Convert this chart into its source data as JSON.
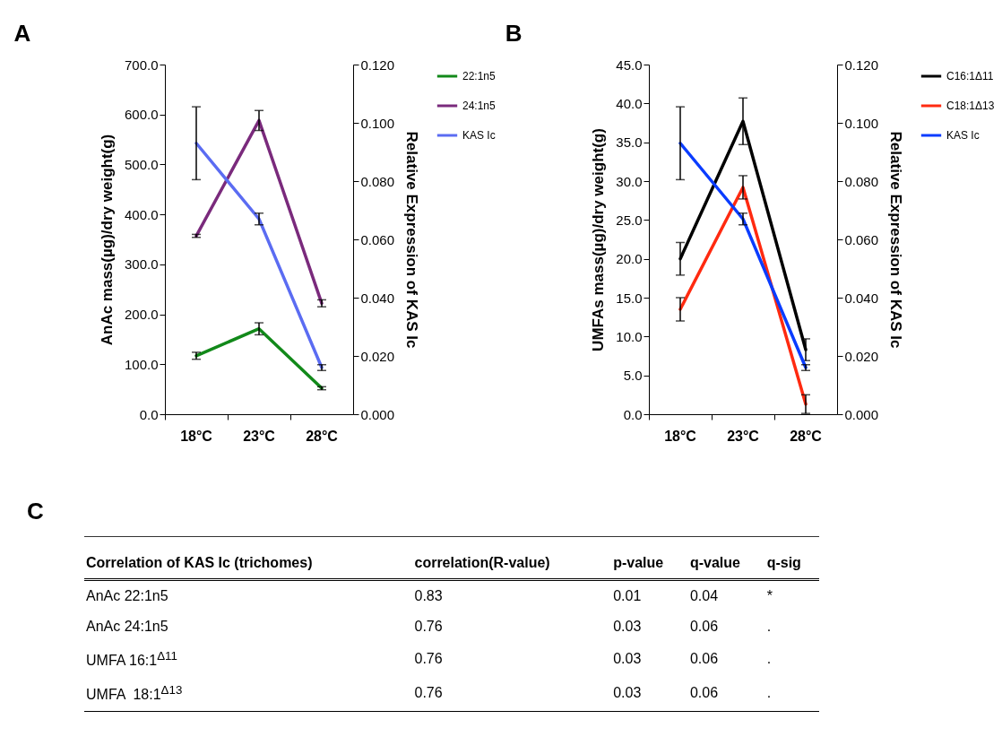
{
  "chart_data": [
    {
      "type": "line",
      "title": "A",
      "categories": [
        "18°C",
        "23°C",
        "28°C"
      ],
      "ylabel": "AnAc mass(µg)/dry weight(g)",
      "y2label": "Relative Expression of  KAS Ic",
      "ylim": [
        0,
        700
      ],
      "yticks": [
        {
          "value": 0,
          "label": "0.0"
        },
        {
          "value": 100,
          "label": "100.0"
        },
        {
          "value": 200,
          "label": "200.0"
        },
        {
          "value": 300,
          "label": "300.0"
        },
        {
          "value": 400,
          "label": "400.0"
        },
        {
          "value": 500,
          "label": "500.0"
        },
        {
          "value": 600,
          "label": "600.0"
        },
        {
          "value": 700,
          "label": "700.0"
        }
      ],
      "y2lim": [
        0,
        0.12
      ],
      "y2ticks": [
        {
          "value": 0,
          "label": "0.000"
        },
        {
          "value": 0.02,
          "label": "0.020"
        },
        {
          "value": 0.04,
          "label": "0.040"
        },
        {
          "value": 0.06,
          "label": "0.060"
        },
        {
          "value": 0.08,
          "label": "0.080"
        },
        {
          "value": 0.1,
          "label": "0.100"
        },
        {
          "value": 0.12,
          "label": "0.120"
        }
      ],
      "legend": "right",
      "series": [
        {
          "name": "22:1n5",
          "color": "#12891a",
          "values": [
            117,
            171,
            52
          ],
          "errors": [
            7,
            12,
            3
          ]
        },
        {
          "name": "24:1n5",
          "color": "#7a2a7c",
          "values": [
            357,
            588,
            222
          ],
          "errors": [
            3,
            20,
            7
          ]
        },
        {
          "name": "KAS Ic",
          "color": "#5b6cf2",
          "axis": "y2",
          "values": [
            0.093,
            0.067,
            0.016
          ],
          "errors": [
            0.0125,
            0.002,
            0.001
          ]
        }
      ]
    },
    {
      "type": "line",
      "title": "B",
      "categories": [
        "18°C",
        "23°C",
        "28°C"
      ],
      "ylabel": "UMFAs mass(µg)/dry weight(g)",
      "y2label": "Relative Expression of  KAS Ic",
      "ylim": [
        0,
        45
      ],
      "yticks": [
        {
          "value": 0,
          "label": "0.0"
        },
        {
          "value": 5,
          "label": "5.0"
        },
        {
          "value": 10,
          "label": "10.0"
        },
        {
          "value": 15,
          "label": "15.0"
        },
        {
          "value": 20,
          "label": "20.0"
        },
        {
          "value": 25,
          "label": "25.0"
        },
        {
          "value": 30,
          "label": "30.0"
        },
        {
          "value": 35,
          "label": "35.0"
        },
        {
          "value": 40,
          "label": "40.0"
        },
        {
          "value": 45,
          "label": "45.0"
        }
      ],
      "y2lim": [
        0,
        0.12
      ],
      "y2ticks": [
        {
          "value": 0,
          "label": "0.000"
        },
        {
          "value": 0.02,
          "label": "0.020"
        },
        {
          "value": 0.04,
          "label": "0.040"
        },
        {
          "value": 0.06,
          "label": "0.060"
        },
        {
          "value": 0.08,
          "label": "0.080"
        },
        {
          "value": 0.1,
          "label": "0.100"
        },
        {
          "value": 0.12,
          "label": "0.120"
        }
      ],
      "legend": "right",
      "series": [
        {
          "name": "C16:1Δ11",
          "color": "#000000",
          "values": [
            20,
            37.7,
            8.3
          ],
          "errors": [
            2.1,
            3,
            1.4
          ]
        },
        {
          "name": "C18:1Δ13",
          "color": "#ff2a10",
          "values": [
            13.5,
            29.2,
            1.3
          ],
          "errors": [
            1.5,
            1.5,
            1.2
          ]
        },
        {
          "name": "KAS Ic",
          "color": "#0a3cff",
          "axis": "y2",
          "values": [
            0.093,
            0.067,
            0.016
          ],
          "errors": [
            0.0125,
            0.002,
            0.001
          ]
        }
      ]
    },
    {
      "type": "other",
      "title": "C",
      "annotations": [
        "Correlation of KAS Ic (trichomes)",
        "correlation(R-value)",
        "p-value",
        "q-value",
        "q-sig",
        "AnAc 22:1n5",
        "0.83",
        "0.01",
        "0.04",
        "*",
        "AnAc 24:1n5",
        "0.76",
        "0.03",
        "0.06",
        ".",
        "UMFA 16:1$^{Δ11}$",
        "0.76",
        "0.03",
        "0.06",
        ".",
        "UMFA  18:1$^{Δ13}$",
        "0.76",
        "0.03",
        "0.06",
        "."
      ]
    }
  ]
}
